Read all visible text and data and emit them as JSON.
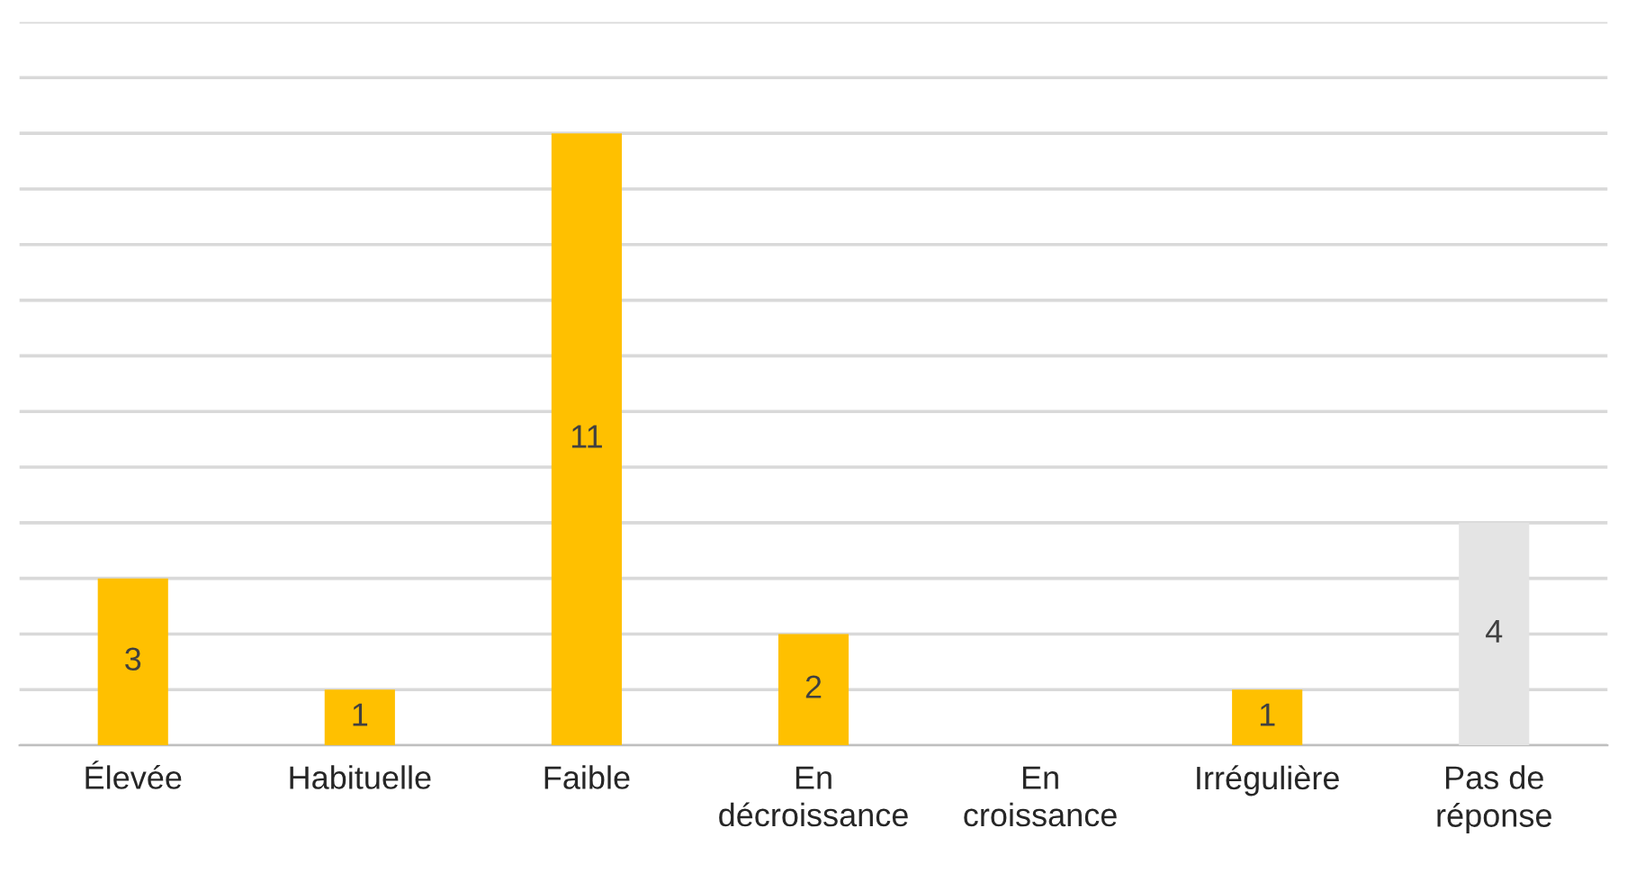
{
  "chart_data": {
    "type": "bar",
    "categories": [
      "Élevée",
      "Habituelle",
      "Faible",
      "En\ndécroissance",
      "En\ncroissance",
      "Irrégulière",
      "Pas de\nréponse"
    ],
    "values": [
      3,
      1,
      11,
      2,
      0,
      1,
      4
    ],
    "colors": [
      "#ffc000",
      "#ffc000",
      "#ffc000",
      "#ffc000",
      "#ffc000",
      "#ffc000",
      "#e4e4e4"
    ],
    "value_labels": [
      "3",
      "1",
      "11",
      "2",
      null,
      "1",
      "4"
    ],
    "ylim": [
      0,
      13
    ],
    "yticks": [
      {
        "value": 0,
        "label": null
      },
      {
        "value": 1,
        "label": null
      },
      {
        "value": 2,
        "label": null
      },
      {
        "value": 3,
        "label": null
      },
      {
        "value": 4,
        "label": null
      },
      {
        "value": 5,
        "label": null
      },
      {
        "value": 6,
        "label": null
      },
      {
        "value": 7,
        "label": null
      },
      {
        "value": 8,
        "label": null
      },
      {
        "value": 9,
        "label": null
      },
      {
        "value": 10,
        "label": null
      },
      {
        "value": 11,
        "label": null
      },
      {
        "value": 12,
        "label": null
      },
      {
        "value": 13,
        "label": null
      }
    ],
    "tick_labels": "x",
    "grid": "y"
  }
}
